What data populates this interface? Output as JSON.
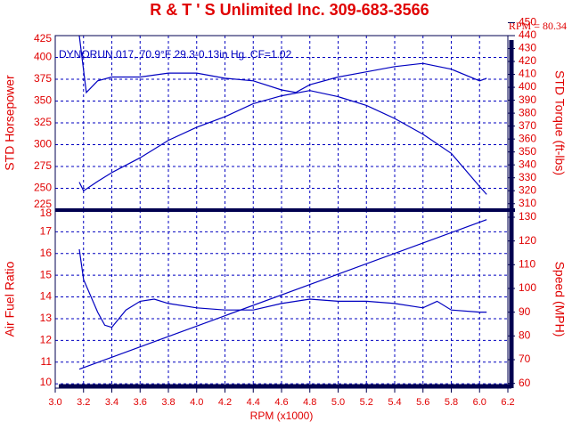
{
  "chart_data": [
    {
      "type": "line",
      "title": "R & T ' S   Unlimited Inc. 309-683-3566",
      "subtitle": "RPM = 80.34",
      "annotation": "DYNORUN.017, 70.9°F  29.3-0.13in Hg.  CF=1.02",
      "ylabel": "STD Horsepower",
      "y2label": "STD Torque (ft-lbs)",
      "xlim": [
        3.0,
        6.2
      ],
      "ylim": [
        225,
        425
      ],
      "yticks": [
        225,
        250,
        275,
        300,
        325,
        350,
        375,
        400,
        425
      ],
      "y2lim": [
        305,
        440
      ],
      "y2ticks": [
        310,
        320,
        330,
        340,
        350,
        360,
        370,
        380,
        390,
        400,
        410,
        420,
        430,
        440,
        450
      ],
      "grid": true,
      "series": [
        {
          "color": "#0000c0",
          "x": [
            3.17,
            3.2,
            3.3,
            3.4,
            3.6,
            3.8,
            4.0,
            4.2,
            4.4,
            4.6,
            4.8,
            5.0,
            5.2,
            5.4,
            5.6,
            5.8,
            6.0,
            6.05
          ],
          "values": [
            257,
            247,
            258,
            268,
            285,
            305,
            320,
            332,
            347,
            356,
            362,
            355,
            345,
            330,
            312,
            290,
            252,
            243
          ]
        },
        {
          "color": "#0000c0",
          "axis": "y2",
          "x": [
            3.17,
            3.22,
            3.3,
            3.4,
            3.6,
            3.8,
            4.0,
            4.2,
            4.4,
            4.6,
            4.7,
            4.8,
            5.0,
            5.2,
            5.4,
            5.6,
            5.8,
            6.0,
            6.05
          ],
          "values": [
            440,
            396,
            405,
            408,
            408,
            411,
            411,
            407,
            405,
            398,
            396,
            402,
            408,
            412,
            416,
            418.5,
            414,
            405,
            407
          ]
        }
      ]
    },
    {
      "type": "line",
      "xlabel": "RPM (x1000)",
      "ylabel": "Air Fuel Ratio",
      "y2label": "Speed (MPH)",
      "xlim": [
        3.0,
        6.2
      ],
      "xticks": [
        {
          "value": 3.0,
          "label": "3.0"
        },
        3.2,
        3.4,
        3.6,
        3.8,
        {
          "value": 4.0,
          "label": "4.0"
        },
        4.2,
        4.4,
        4.6,
        4.8,
        {
          "value": 5.0,
          "label": "5.0"
        },
        5.2,
        5.4,
        5.6,
        5.8,
        {
          "value": 6.0,
          "label": "6.0"
        },
        6.2
      ],
      "ylim": [
        9.8,
        18
      ],
      "yticks": [
        10,
        11,
        12,
        13,
        14,
        15,
        16,
        17,
        18
      ],
      "y2lim": [
        58,
        133
      ],
      "y2ticks": [
        60,
        70,
        80,
        90,
        100,
        110,
        120,
        130
      ],
      "grid": true,
      "series": [
        {
          "color": "#0000c0",
          "x": [
            3.17,
            3.2,
            3.3,
            3.35,
            3.4,
            3.5,
            3.6,
            3.7,
            3.8,
            4.0,
            4.2,
            4.4,
            4.6,
            4.8,
            5.0,
            5.2,
            5.4,
            5.6,
            5.7,
            5.8,
            6.0,
            6.05
          ],
          "values": [
            16.2,
            14.8,
            13.3,
            12.7,
            12.6,
            13.4,
            13.8,
            13.9,
            13.7,
            13.5,
            13.4,
            13.4,
            13.7,
            13.9,
            13.8,
            13.8,
            13.7,
            13.5,
            13.8,
            13.4,
            13.3,
            13.3
          ]
        },
        {
          "color": "#0000c0",
          "axis": "y2",
          "x": [
            3.17,
            6.05
          ],
          "values": [
            66,
            129
          ]
        }
      ]
    }
  ]
}
